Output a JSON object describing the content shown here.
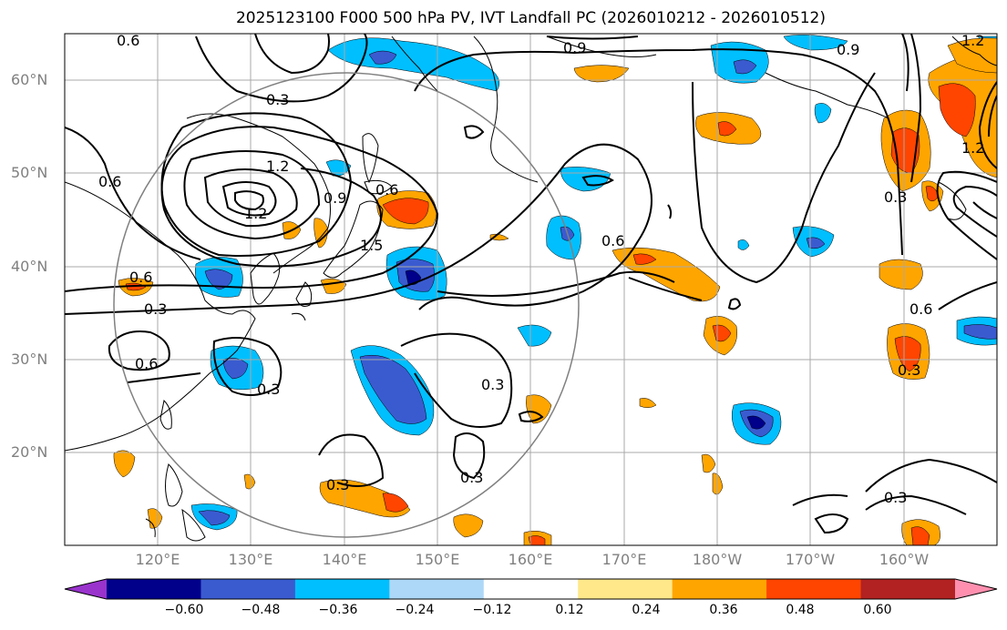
{
  "title": "2025123100 F000 500 hPa PV, IVT Landfall PC (2026010212 - 2026010512)",
  "map": {
    "lon_range": [
      110,
      210
    ],
    "lat_range": [
      10,
      65
    ],
    "lat_labels": [
      "20°N",
      "30°N",
      "40°N",
      "50°N",
      "60°N"
    ],
    "lon_labels": [
      "120°E",
      "130°E",
      "140°E",
      "150°E",
      "160°E",
      "170°E",
      "180°W",
      "170°W",
      "160°W"
    ],
    "contour_labels": [
      "0.6",
      "0.9",
      "0.9",
      "1.2",
      "1.2",
      "0.3",
      "0.6",
      "1.2",
      "0.9",
      "0.6",
      "1.5",
      "0.6",
      "0.3",
      "0.6",
      "0.3",
      "0.3",
      "0.3",
      "0.3",
      "0.6",
      "0.3",
      "0.3",
      "1.2",
      "0.3",
      "0.6"
    ],
    "colors": {
      "neg_060": "#9933cc",
      "neg_048": "#00008b",
      "neg_036": "#3a5bd0",
      "neg_024": "#00bfff",
      "neg_012": "#add8f7",
      "pos_012": "#ffe88a",
      "pos_024": "#ffa500",
      "pos_036": "#ff4500",
      "pos_048": "#b22222",
      "pos_060": "#ff8faf"
    }
  },
  "colorbar": {
    "ticks": [
      "−0.60",
      "−0.48",
      "−0.36",
      "−0.24",
      "−0.12",
      "0.12",
      "0.24",
      "0.36",
      "0.48",
      "0.60"
    ],
    "colors": [
      "#9933cc",
      "#00008b",
      "#3a5bd0",
      "#00bfff",
      "#add8f7",
      "#ffffff",
      "#ffe88a",
      "#ffa500",
      "#ff4500",
      "#b22222",
      "#ff8faf"
    ]
  }
}
